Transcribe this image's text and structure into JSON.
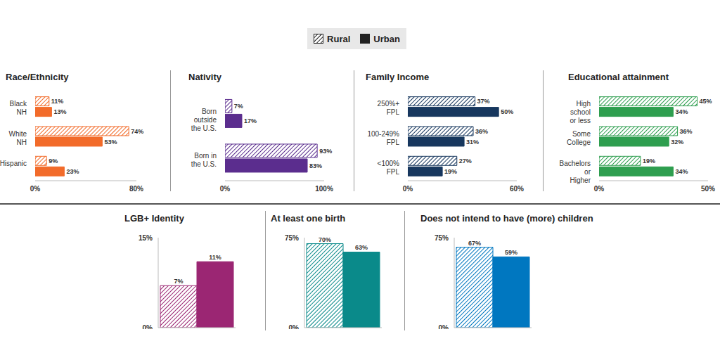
{
  "chart_data": [
    {
      "type": "bar",
      "title": "Race/Ethnicity",
      "orientation": "horizontal",
      "legend": "top",
      "data_labels": true,
      "categories": [
        "Black NH",
        "White NH",
        "Hispanic"
      ],
      "series": [
        {
          "name": "Rural",
          "color": "#f26b2a",
          "values": [
            11,
            74,
            9
          ],
          "value_labels": [
            "11%",
            "74%",
            "9%"
          ]
        },
        {
          "name": "Urban",
          "color": "#f26b2a",
          "values": [
            13,
            53,
            23
          ],
          "value_labels": [
            "13%",
            "53%",
            "23%"
          ]
        }
      ],
      "xlim": [
        0,
        80
      ],
      "xticks": [
        {
          "value": 0,
          "label": "0%"
        },
        {
          "value": 80,
          "label": "80%"
        }
      ]
    },
    {
      "type": "bar",
      "title": "Nativity",
      "orientation": "horizontal",
      "data_labels": true,
      "categories": [
        "Born outside the U.S.",
        "Born in the U.S."
      ],
      "series": [
        {
          "name": "Rural",
          "color": "#5b2d8e",
          "values": [
            7,
            93
          ],
          "value_labels": [
            "7%",
            "93%"
          ]
        },
        {
          "name": "Urban",
          "color": "#5b2d8e",
          "values": [
            17,
            83
          ],
          "value_labels": [
            "17%",
            "83%"
          ]
        }
      ],
      "xlim": [
        0,
        100
      ],
      "xticks": [
        {
          "value": 0,
          "label": "0%"
        },
        {
          "value": 100,
          "label": "100%"
        }
      ]
    },
    {
      "type": "bar",
      "title": "Family Income",
      "orientation": "horizontal",
      "data_labels": true,
      "categories": [
        "250%+ FPL",
        "100-249% FPL",
        "<100% FPL"
      ],
      "series": [
        {
          "name": "Rural",
          "color": "#17375e",
          "values": [
            37,
            36,
            27
          ],
          "value_labels": [
            "37%",
            "36%",
            "27%"
          ]
        },
        {
          "name": "Urban",
          "color": "#17375e",
          "values": [
            50,
            31,
            19
          ],
          "value_labels": [
            "50%",
            "31%",
            "19%"
          ]
        }
      ],
      "xlim": [
        0,
        60
      ],
      "xticks": [
        {
          "value": 0,
          "label": "0%"
        },
        {
          "value": 60,
          "label": "60%"
        }
      ]
    },
    {
      "type": "bar",
      "title": "Educational attainment",
      "orientation": "horizontal",
      "data_labels": true,
      "categories": [
        "High school or less",
        "Some College",
        "Bachelors or Higher"
      ],
      "series": [
        {
          "name": "Rural",
          "color": "#2e9e4f",
          "values": [
            45,
            36,
            19
          ],
          "value_labels": [
            "45%",
            "36%",
            "19%"
          ]
        },
        {
          "name": "Urban",
          "color": "#2e9e4f",
          "values": [
            34,
            32,
            34
          ],
          "value_labels": [
            "34%",
            "32%",
            "34%"
          ]
        }
      ],
      "xlim": [
        0,
        50
      ],
      "xticks": [
        {
          "value": 0,
          "label": "0%"
        },
        {
          "value": 50,
          "label": "50%"
        }
      ]
    },
    {
      "type": "bar",
      "title": "LGB+ Identity",
      "data_labels": true,
      "tick_labels": "y",
      "categories": [
        null
      ],
      "series": [
        {
          "name": "Rural",
          "color": "#9b2673",
          "values": [
            7
          ],
          "value_labels": [
            "7%"
          ]
        },
        {
          "name": "Urban",
          "color": "#9b2673",
          "values": [
            11
          ],
          "value_labels": [
            "11%"
          ]
        }
      ],
      "ylim": [
        0,
        15
      ],
      "yticks": [
        {
          "value": 0,
          "label": "0%"
        },
        {
          "value": 15,
          "label": "15%"
        }
      ]
    },
    {
      "type": "bar",
      "title": "At least one birth",
      "data_labels": true,
      "tick_labels": "y",
      "categories": [
        null
      ],
      "series": [
        {
          "name": "Rural",
          "color": "#0a8a8a",
          "values": [
            70
          ],
          "value_labels": [
            "70%"
          ]
        },
        {
          "name": "Urban",
          "color": "#0a8a8a",
          "values": [
            63
          ],
          "value_labels": [
            "63%"
          ]
        }
      ],
      "ylim": [
        0,
        75
      ],
      "yticks": [
        {
          "value": 0,
          "label": "0%"
        },
        {
          "value": 75,
          "label": "75%"
        }
      ]
    },
    {
      "type": "bar",
      "title": "Does not intend to have (more) children",
      "data_labels": true,
      "tick_labels": "y",
      "categories": [
        null
      ],
      "series": [
        {
          "name": "Rural",
          "color": "#0077c0",
          "values": [
            67
          ],
          "value_labels": [
            "67%"
          ]
        },
        {
          "name": "Urban",
          "color": "#0077c0",
          "values": [
            59
          ],
          "value_labels": [
            "59%"
          ]
        }
      ],
      "ylim": [
        0,
        75
      ],
      "yticks": [
        {
          "value": 0,
          "label": "0%"
        },
        {
          "value": 75,
          "label": "75%"
        }
      ]
    }
  ]
}
